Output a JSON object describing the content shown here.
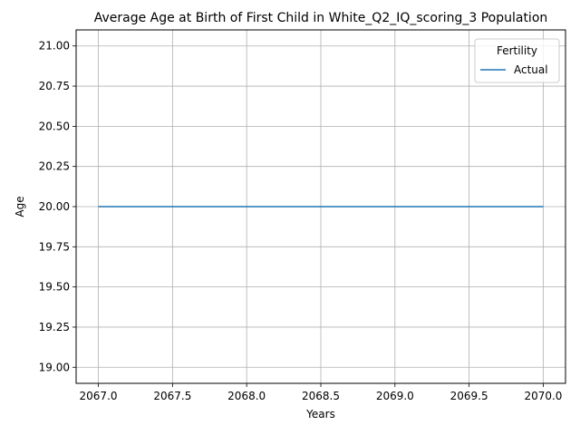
{
  "chart_data": {
    "type": "line",
    "title": "Average Age at Birth of First Child in White_Q2_IQ_scoring_3 Population",
    "xlabel": "Years",
    "ylabel": "Age",
    "xlim": [
      2066.85,
      2070.15
    ],
    "ylim": [
      18.9,
      21.1
    ],
    "xticks": [
      2067.0,
      2067.5,
      2068.0,
      2068.5,
      2069.0,
      2069.5,
      2070.0
    ],
    "xtick_labels": [
      "2067.0",
      "2067.5",
      "2068.0",
      "2068.5",
      "2069.0",
      "2069.5",
      "2070.0"
    ],
    "yticks": [
      19.0,
      19.25,
      19.5,
      19.75,
      20.0,
      20.25,
      20.5,
      20.75,
      21.0
    ],
    "ytick_labels": [
      "19.00",
      "19.25",
      "19.50",
      "19.75",
      "20.00",
      "20.25",
      "20.50",
      "20.75",
      "21.00"
    ],
    "grid": true,
    "legend": {
      "title": "Fertility",
      "placement": "top-right"
    },
    "series": [
      {
        "name": "Actual",
        "color": "#1f77b4",
        "x": [
          2067,
          2068,
          2069,
          2070
        ],
        "y": [
          20,
          20,
          20,
          20
        ]
      }
    ]
  }
}
